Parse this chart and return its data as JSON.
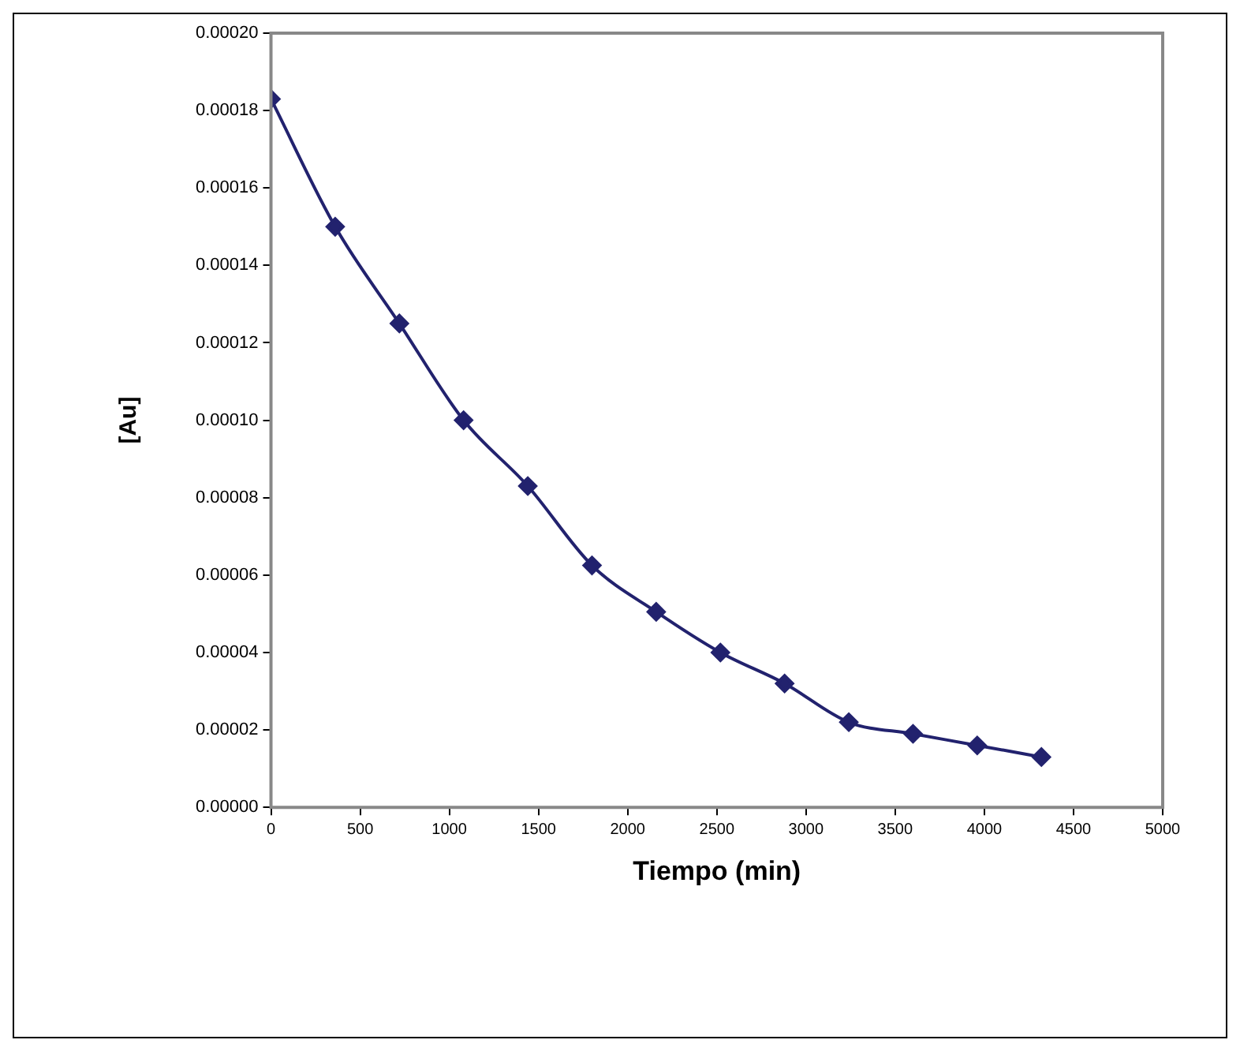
{
  "chart_data": {
    "type": "line",
    "xlabel": "Tiempo (min)",
    "ylabel": "[Au]",
    "x": [
      0,
      360,
      720,
      1080,
      1440,
      1800,
      2160,
      2520,
      2880,
      3240,
      3600,
      3960,
      4320
    ],
    "series": [
      {
        "color": "#22226e",
        "values": [
          0.000183,
          0.00015,
          0.000125,
          0.0001,
          8.3e-05,
          6.25e-05,
          5.05e-05,
          4e-05,
          3.2e-05,
          2.2e-05,
          1.9e-05,
          1.6e-05,
          1.3e-05
        ]
      }
    ],
    "xlim": [
      0,
      5000
    ],
    "xticks": [
      0,
      500,
      1000,
      1500,
      2000,
      2500,
      3000,
      3500,
      4000,
      4500,
      5000
    ],
    "ylim": [
      0,
      0.0002
    ],
    "yticks": [
      {
        "value": 0,
        "label": "0.00000"
      },
      {
        "value": 2e-05,
        "label": "0.00002"
      },
      {
        "value": 4e-05,
        "label": "0.00004"
      },
      {
        "value": 6e-05,
        "label": "0.00006"
      },
      {
        "value": 8e-05,
        "label": "0.00008"
      },
      {
        "value": 0.0001,
        "label": "0.00010"
      },
      {
        "value": 0.00012,
        "label": "0.00012"
      },
      {
        "value": 0.00014,
        "label": "0.00014"
      },
      {
        "value": 0.00016,
        "label": "0.00016"
      },
      {
        "value": 0.00018,
        "label": "0.00018"
      },
      {
        "value": 0.0002,
        "label": "0.00020"
      }
    ],
    "grid": false,
    "legend": false,
    "marker": "diamond",
    "line_style": "solid"
  }
}
